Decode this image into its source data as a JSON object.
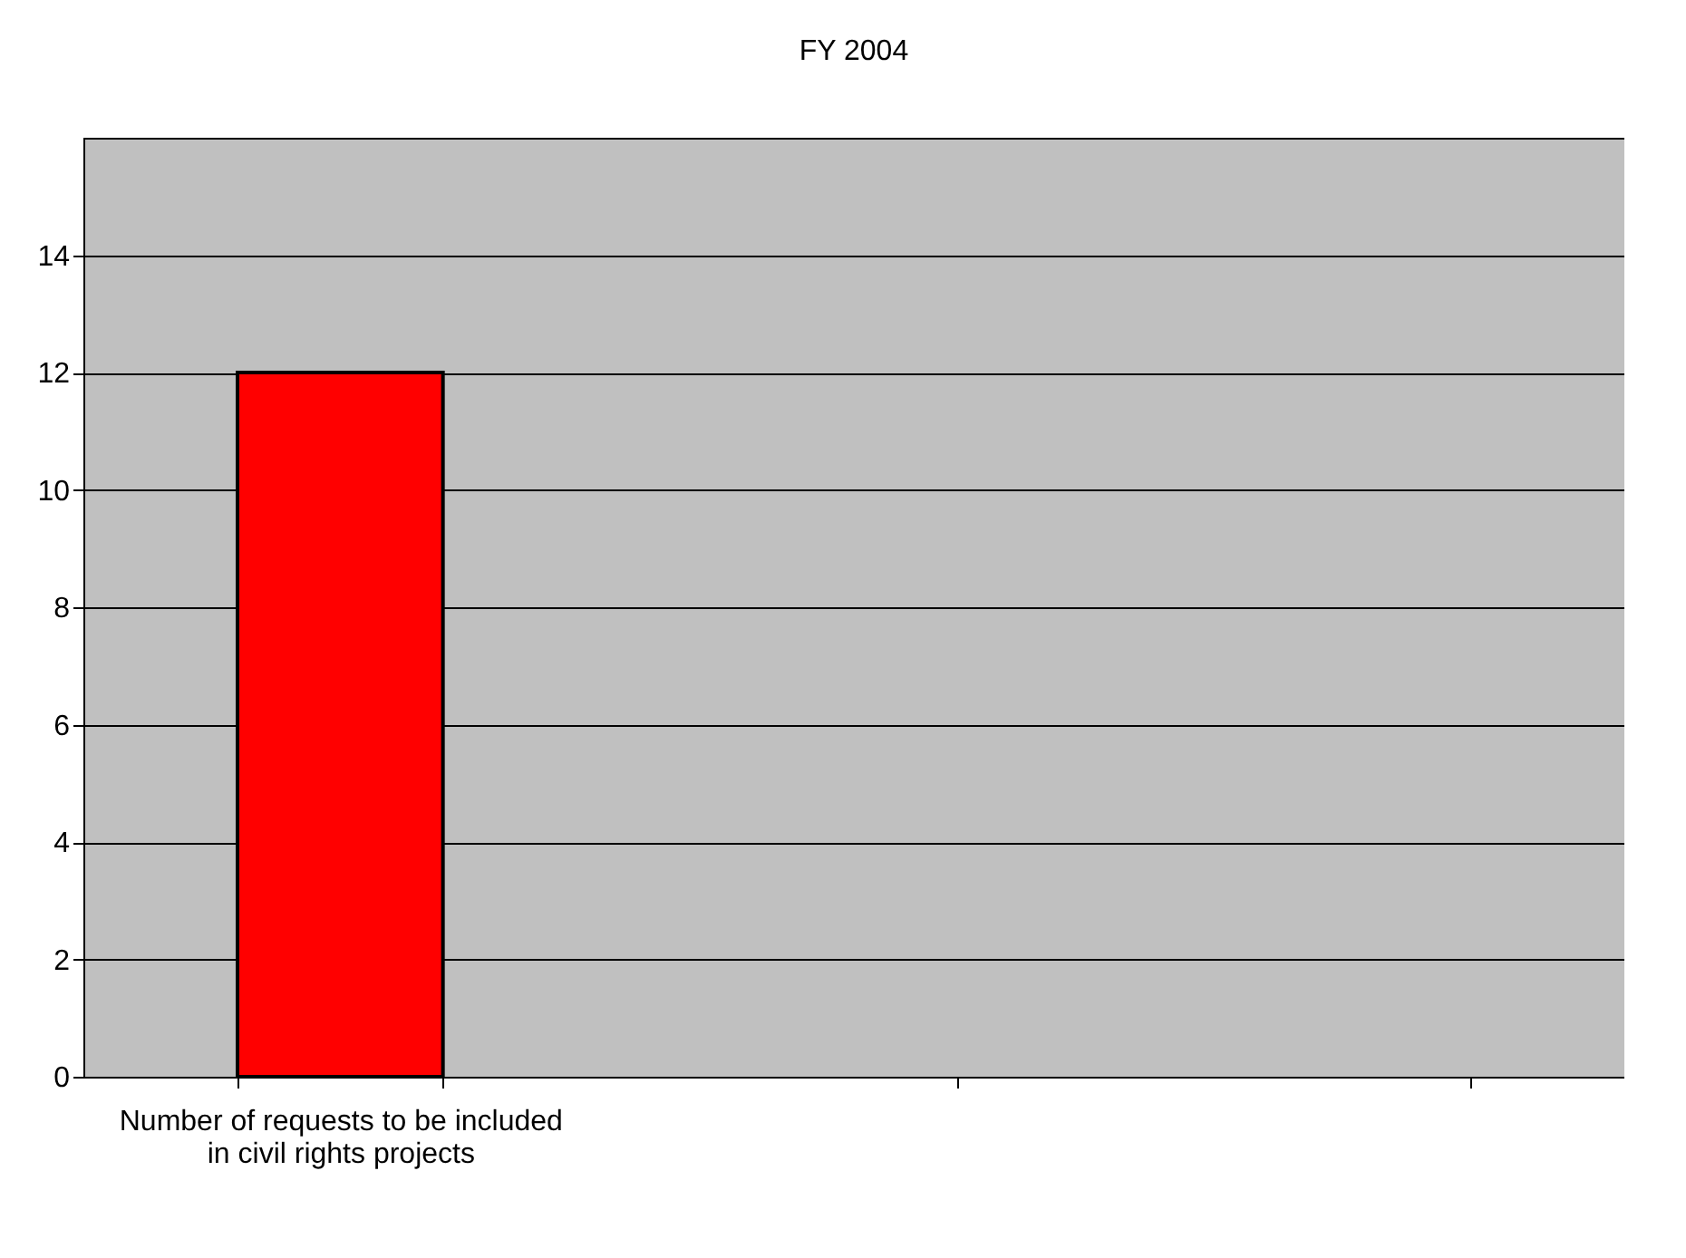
{
  "chart_data": {
    "type": "bar",
    "title": "FY 2004",
    "categories": [
      "Number of requests to be included in civil rights projects",
      null,
      null
    ],
    "values": [
      12,
      null,
      null
    ],
    "color": "#ff0000",
    "ylim": [
      0,
      16
    ],
    "yticks": [
      0,
      2,
      4,
      6,
      8,
      10,
      12,
      14
    ],
    "grid": "y"
  }
}
